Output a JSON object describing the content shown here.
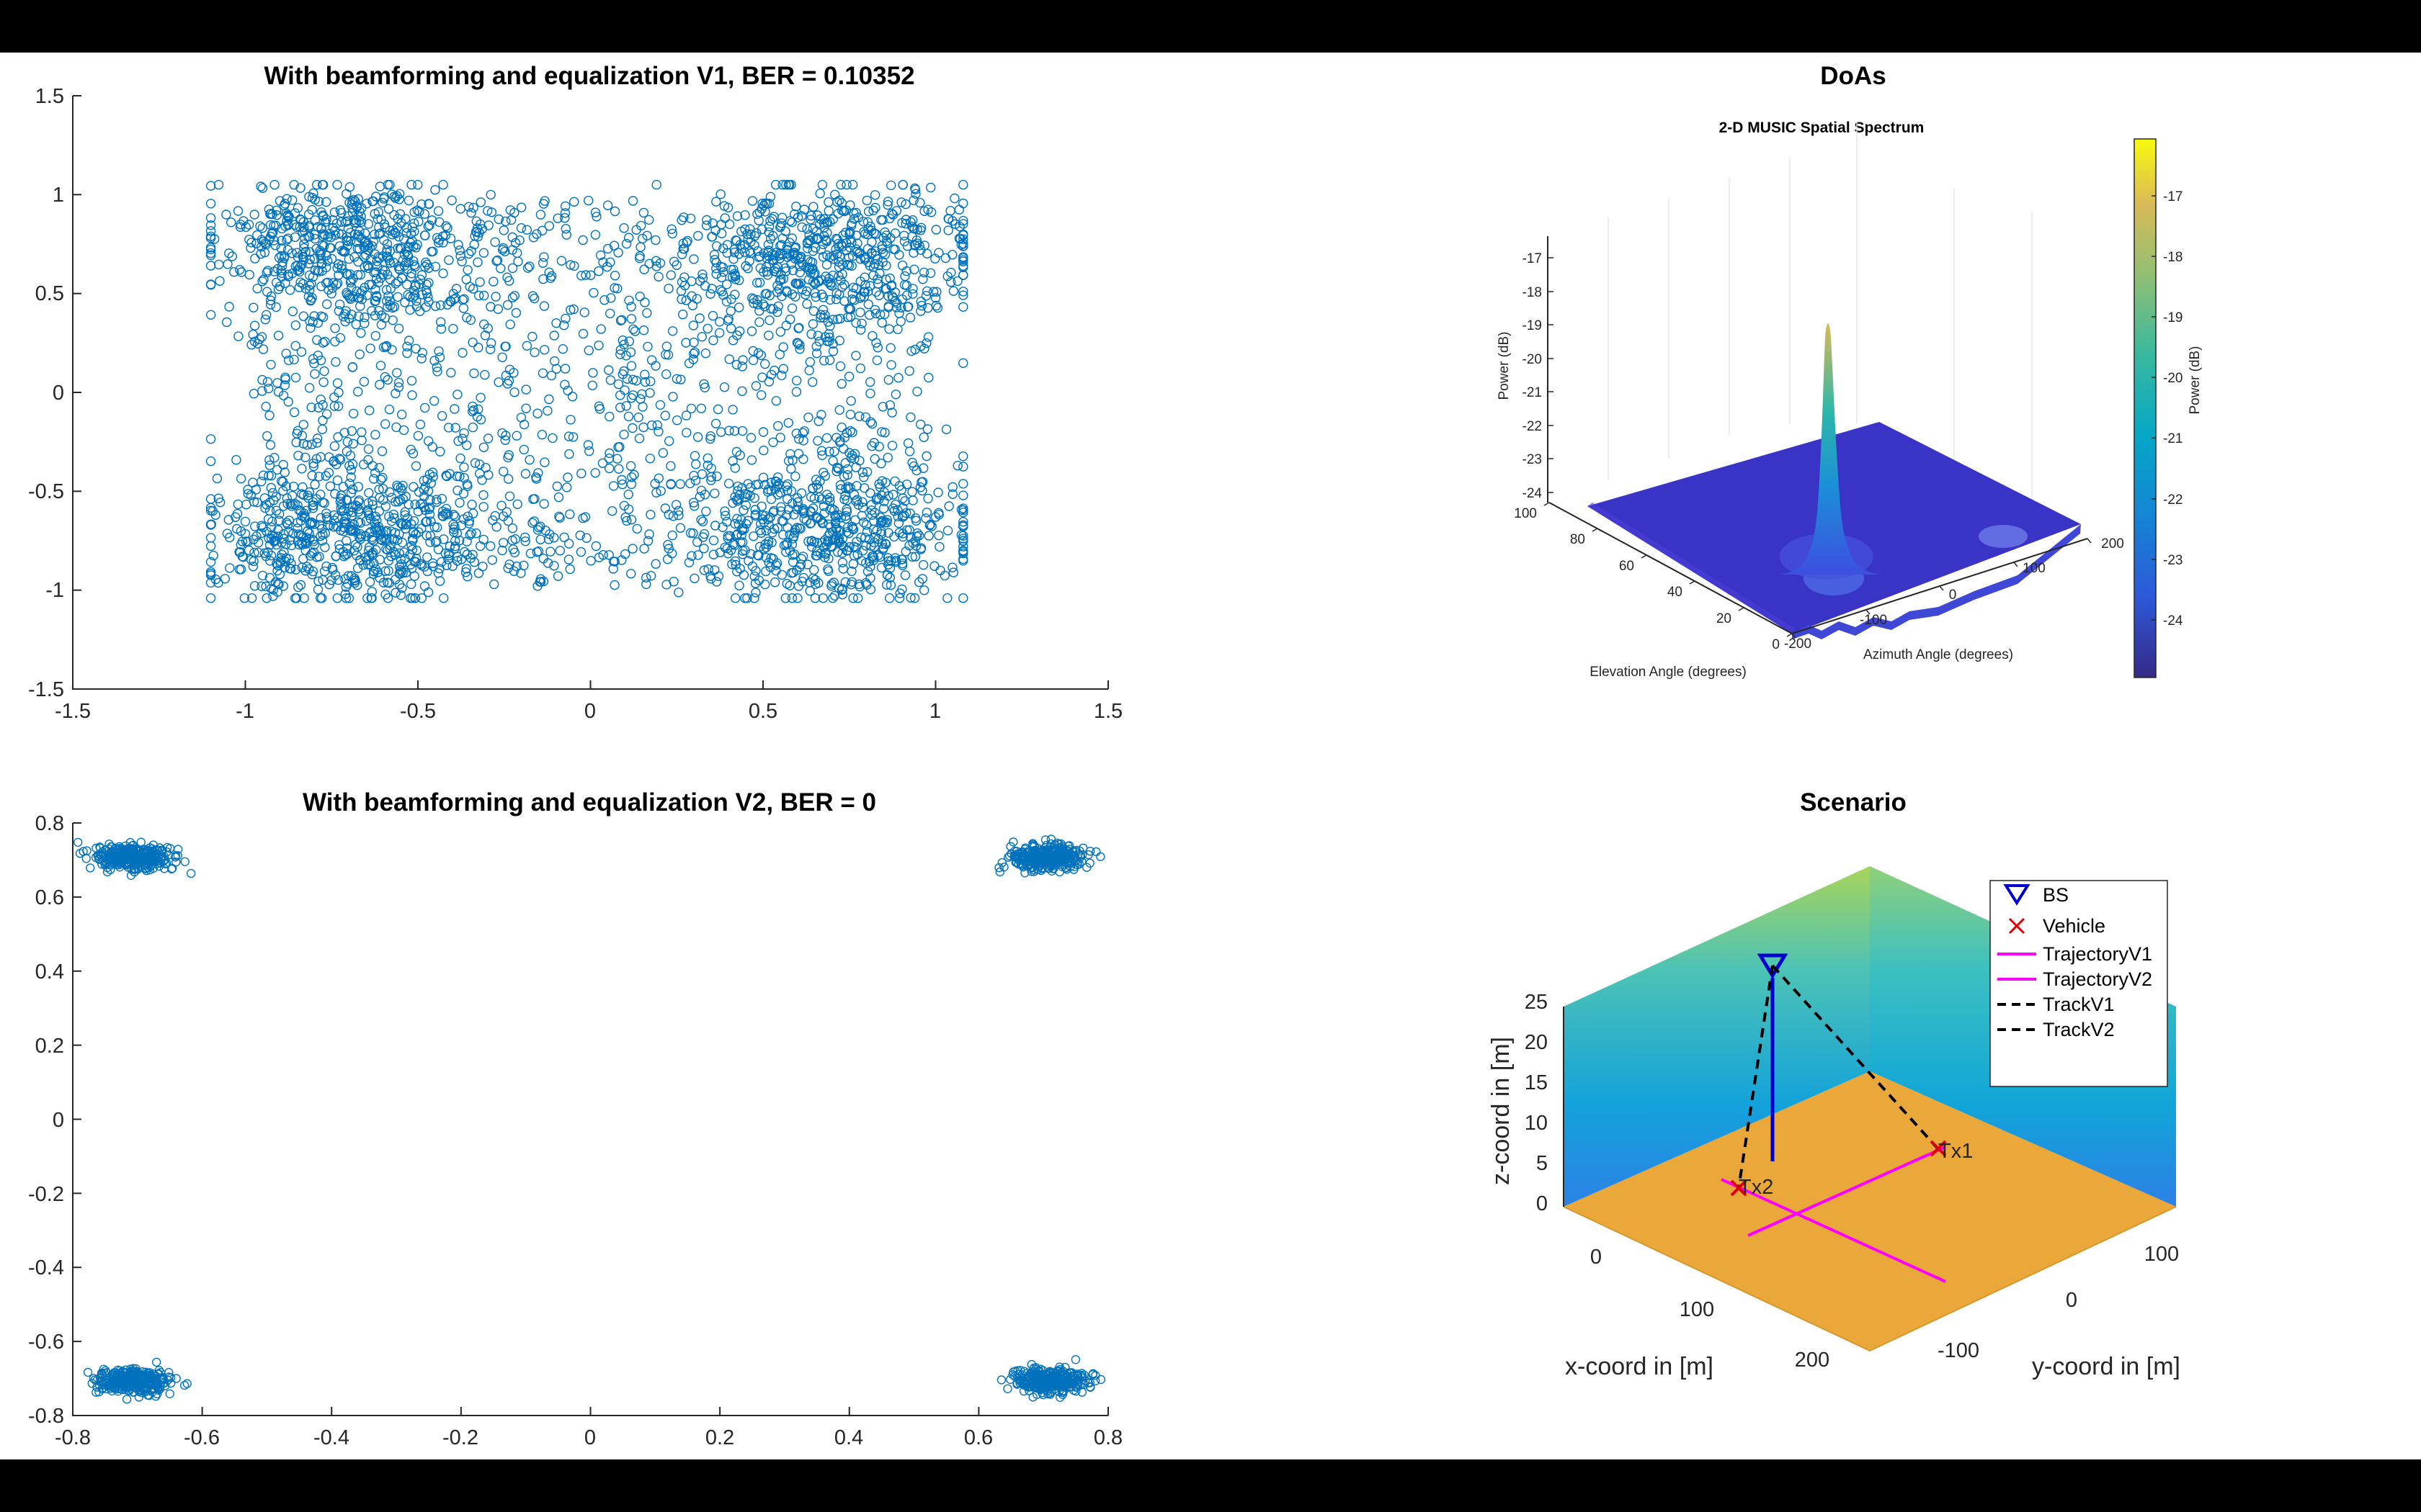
{
  "chart_data": [
    {
      "id": "v1",
      "type": "scatter",
      "title": "With beamforming and equalization V1, BER = 0.10352",
      "xlim": [
        -1.5,
        1.5
      ],
      "ylim": [
        -1.5,
        1.5
      ],
      "xticks": [
        "-1.5",
        "-1",
        "-0.5",
        "0",
        "0.5",
        "1",
        "1.5"
      ],
      "yticks": [
        "1.5",
        "1",
        "0.5",
        "0",
        "-0.5",
        "-1",
        "-1.5"
      ],
      "marker": "open circle",
      "color": "#0072BD",
      "points_description": "about 4000 received symbols spread over x in [-1.1, 1.1], y in [-1.05, 1.05], denser near the four QPSK corners (±0.7, ±0.7)"
    },
    {
      "id": "v2",
      "type": "scatter",
      "title": "With beamforming and equalization V2, BER = 0",
      "xlim": [
        -0.8,
        0.8
      ],
      "ylim": [
        -0.8,
        0.8
      ],
      "xticks": [
        "-0.8",
        "-0.6",
        "-0.4",
        "-0.2",
        "0",
        "0.2",
        "0.4",
        "0.6",
        "0.8"
      ],
      "yticks": [
        "0.8",
        "0.6",
        "0.4",
        "0.2",
        "0",
        "-0.2",
        "-0.4",
        "-0.6",
        "-0.8"
      ],
      "marker": "open circle",
      "color": "#0072BD",
      "clusters": [
        {
          "x": -0.7071,
          "y": 0.7071
        },
        {
          "x": 0.7071,
          "y": 0.7071
        },
        {
          "x": -0.7071,
          "y": -0.7071
        },
        {
          "x": 0.7071,
          "y": -0.7071
        }
      ],
      "cluster_spread": 0.03
    },
    {
      "id": "doas",
      "type": "surface",
      "title": "DoAs",
      "subtitle": "2-D MUSIC Spatial Spectrum",
      "zlabel": "Power (dB)",
      "xlabel": "Elevation Angle (degrees)",
      "ylabel": "Azimuth Angle (degrees)",
      "colorbar_label": "Power (dB)",
      "zticks": [
        "-17",
        "-18",
        "-19",
        "-20",
        "-21",
        "-22",
        "-23",
        "-24"
      ],
      "elev_ticks": [
        "100",
        "80",
        "60",
        "40",
        "20",
        "0"
      ],
      "az_ticks": [
        "-200",
        "-100",
        "0",
        "100",
        "200"
      ],
      "colorbar_ticks": [
        "-17",
        "-18",
        "-19",
        "-20",
        "-21",
        "-22",
        "-23",
        "-24"
      ],
      "zlim": [
        -24,
        -16.5
      ],
      "peak": {
        "power_db": -18.9
      },
      "colormap": "parula"
    },
    {
      "id": "scenario",
      "type": "3d-scene",
      "title": "Scenario",
      "xlabel": "x-coord in [m]",
      "ylabel": "y-coord in [m]",
      "zlabel": "z-coord in [m]",
      "zticks": [
        "25",
        "20",
        "15",
        "10",
        "5",
        "0"
      ],
      "xticks": [
        "0",
        "100",
        "200"
      ],
      "yticks": [
        "100",
        "0",
        "-100"
      ],
      "labels": {
        "tx1": "Tx1",
        "tx2": "Tx2"
      },
      "legend": [
        {
          "label": "BS",
          "symbol": "triangle-down",
          "color": "#0000CC"
        },
        {
          "label": "Vehicle",
          "symbol": "x",
          "color": "#E00000"
        },
        {
          "label": "TrajectoryV1",
          "symbol": "line",
          "color": "#FF00FF"
        },
        {
          "label": "TrajectoryV2",
          "symbol": "line",
          "color": "#FF00FF"
        },
        {
          "label": "TrackV1",
          "symbol": "dashed",
          "color": "#000000"
        },
        {
          "label": "TrackV2",
          "symbol": "dashed",
          "color": "#000000"
        }
      ],
      "legend_position": "top-right",
      "ground_color": "#EBA83A"
    }
  ]
}
